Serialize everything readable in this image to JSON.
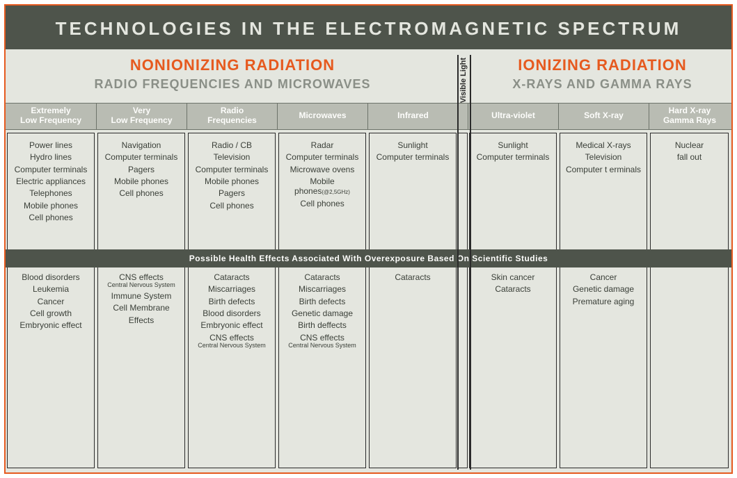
{
  "colors": {
    "frame_border": "#e65a1f",
    "page_bg": "#e4e6df",
    "dark_bar": "#4e544b",
    "header_bg": "#b9bcb3",
    "section_accent": "#e65a1f",
    "muted_text": "#8a8f87",
    "body_text": "#3a3f38",
    "light_text": "#fdfdfb",
    "rule": "#6d736a"
  },
  "title": "TECHNOLOGIES  IN  THE  ELECTROMAGNETIC  SPECTRUM",
  "sections": {
    "nonionizing": {
      "title": "NONIONIZING RADIATION",
      "subtitle": "RADIO FREQUENCIES AND MICROWAVES"
    },
    "visible_light": "Visible Light",
    "ionizing": {
      "title": "IONIZING RADIATION",
      "subtitle": "X-RAYS AND GAMMA RAYS"
    }
  },
  "health_band": "Possible Health Effects Associated With Overexposure Based On Scientific Studies",
  "columns": [
    {
      "header": [
        "Extremely",
        "Low Frequency"
      ],
      "tech": [
        "Power lines",
        "Hydro lines",
        "Computer terminals",
        "Electric appliances",
        "Telephones",
        "Mobile phones",
        "Cell phones"
      ],
      "health": [
        "Blood disorders",
        "Leukemia",
        "Cancer",
        "Cell growth",
        "Embryonic effect"
      ]
    },
    {
      "header": [
        "Very",
        "Low Frequency"
      ],
      "tech": [
        "Navigation",
        "Computer terminals",
        "Pagers",
        "Mobile phones",
        "Cell phones"
      ],
      "health": [
        {
          "text": "CNS effects",
          "sub": "Central Nervous System"
        },
        "Immune System",
        {
          "text": "Cell Membrane"
        },
        "Effects"
      ]
    },
    {
      "header": [
        "Radio",
        "Frequencies"
      ],
      "tech": [
        "Radio / CB",
        "Television",
        "Computer terminals",
        "Mobile phones",
        "Pagers",
        "Cell phones"
      ],
      "health": [
        "Cataracts",
        "Miscarriages",
        "Birth defects",
        "Blood disorders",
        "Embryonic effect",
        {
          "text": "CNS effects",
          "sub": "Central Nervous System"
        }
      ]
    },
    {
      "header": [
        "Microwaves"
      ],
      "tech": [
        "Radar",
        "Computer terminals",
        "Microwave ovens",
        {
          "text": "Mobile phones",
          "inline": "(@2,5GHz)"
        },
        "Cell phones"
      ],
      "health": [
        "Cataracts",
        "Miscarriages",
        "Birth defects",
        "Genetic damage",
        "Birth deffects",
        {
          "text": "CNS effects",
          "sub": "Central Nervous System"
        }
      ]
    },
    {
      "header": [
        "Infrared"
      ],
      "tech": [
        "Sunlight",
        "Computer terminals"
      ],
      "health": [
        "Cataracts"
      ]
    },
    {
      "narrow": true
    },
    {
      "header": [
        "Ultra-violet"
      ],
      "tech": [
        "Sunlight",
        "Computer terminals"
      ],
      "health": [
        "Skin cancer",
        "Cataracts"
      ]
    },
    {
      "header": [
        "Soft X-ray"
      ],
      "tech": [
        "Medical X-rays",
        "Television",
        "Computer t erminals"
      ],
      "health": [
        "Cancer",
        "Genetic damage",
        "Premature aging"
      ]
    },
    {
      "header": [
        "Hard X-ray",
        "Gamma Rays"
      ],
      "tech": [
        "Nuclear",
        "fall out"
      ],
      "health": []
    }
  ]
}
